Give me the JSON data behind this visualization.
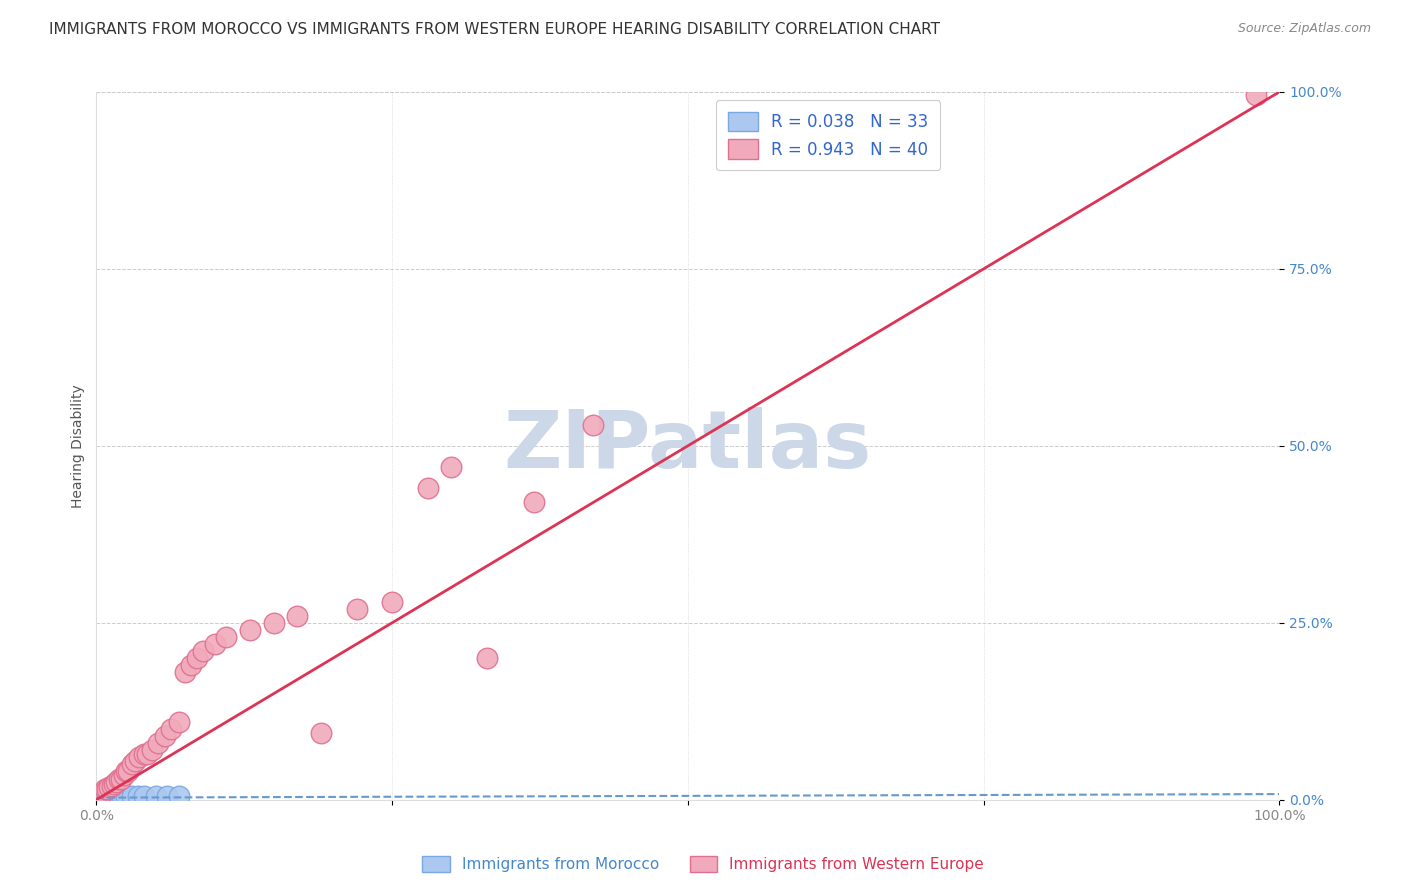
{
  "title": "IMMIGRANTS FROM MOROCCO VS IMMIGRANTS FROM WESTERN EUROPE HEARING DISABILITY CORRELATION CHART",
  "source": "Source: ZipAtlas.com",
  "ylabel": "Hearing Disability",
  "xlim": [
    0,
    1
  ],
  "ylim": [
    0,
    1
  ],
  "ytick_labels_right": [
    "0.0%",
    "25.0%",
    "50.0%",
    "75.0%",
    "100.0%"
  ],
  "xtick_labels": [
    "0.0%",
    "25.0%",
    "50.0%",
    "75.0%",
    "100.0%"
  ],
  "legend_entry1": "R = 0.038   N = 33",
  "legend_entry2": "R = 0.943   N = 40",
  "legend_label1": "Immigrants from Morocco",
  "legend_label2": "Immigrants from Western Europe",
  "blue_fill": "#adc8f0",
  "blue_edge": "#7aa8e0",
  "pink_fill": "#f0aabb",
  "pink_edge": "#e07090",
  "blue_line_color": "#6699cc",
  "pink_line_color": "#dd3355",
  "grid_color": "#cccccc",
  "watermark_color": "#ccd8e8",
  "blue_scatter_x": [
    0.002,
    0.003,
    0.004,
    0.004,
    0.005,
    0.005,
    0.006,
    0.006,
    0.007,
    0.007,
    0.008,
    0.008,
    0.009,
    0.009,
    0.01,
    0.01,
    0.011,
    0.012,
    0.012,
    0.013,
    0.014,
    0.015,
    0.016,
    0.018,
    0.02,
    0.022,
    0.025,
    0.03,
    0.035,
    0.04,
    0.05,
    0.06,
    0.07
  ],
  "blue_scatter_y": [
    0.003,
    0.004,
    0.003,
    0.005,
    0.003,
    0.005,
    0.004,
    0.006,
    0.003,
    0.005,
    0.004,
    0.006,
    0.004,
    0.005,
    0.003,
    0.006,
    0.004,
    0.005,
    0.003,
    0.004,
    0.005,
    0.004,
    0.005,
    0.004,
    0.004,
    0.005,
    0.004,
    0.005,
    0.005,
    0.006,
    0.005,
    0.006,
    0.006
  ],
  "pink_scatter_x": [
    0.005,
    0.007,
    0.009,
    0.011,
    0.013,
    0.015,
    0.017,
    0.019,
    0.021,
    0.023,
    0.025,
    0.027,
    0.03,
    0.033,
    0.036,
    0.04,
    0.043,
    0.047,
    0.052,
    0.058,
    0.063,
    0.07,
    0.075,
    0.08,
    0.085,
    0.09,
    0.1,
    0.11,
    0.13,
    0.15,
    0.17,
    0.19,
    0.22,
    0.25,
    0.28,
    0.3,
    0.33,
    0.37,
    0.42,
    0.98
  ],
  "pink_scatter_y": [
    0.01,
    0.015,
    0.015,
    0.018,
    0.02,
    0.022,
    0.025,
    0.03,
    0.03,
    0.035,
    0.04,
    0.04,
    0.05,
    0.055,
    0.06,
    0.065,
    0.065,
    0.07,
    0.08,
    0.09,
    0.1,
    0.11,
    0.18,
    0.19,
    0.2,
    0.21,
    0.22,
    0.23,
    0.24,
    0.25,
    0.26,
    0.095,
    0.27,
    0.28,
    0.44,
    0.47,
    0.2,
    0.42,
    0.53,
    0.995
  ],
  "blue_trend_x": [
    0,
    1
  ],
  "blue_trend_y": [
    0.003,
    0.008
  ],
  "pink_trend_x": [
    0,
    1
  ],
  "pink_trend_y": [
    0.0,
    1.0
  ],
  "background_color": "#ffffff",
  "title_fontsize": 11,
  "axis_label_fontsize": 10,
  "tick_fontsize": 10
}
